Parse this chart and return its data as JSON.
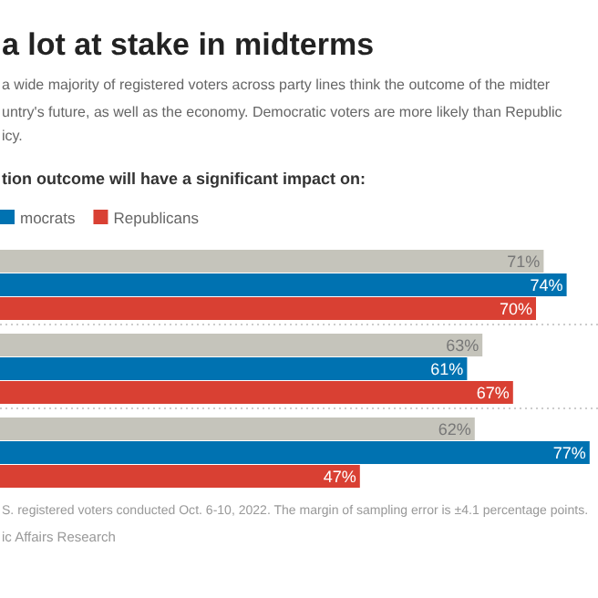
{
  "chart_data": {
    "type": "bar",
    "orientation": "horizontal",
    "title": "a lot at stake in midterms",
    "subtitle": "a wide majority of registered voters across party lines think the outcome of the midter\nuntry's future, as well as the economy. Democratic voters are more likely than Republic\nicy.\ntion outcome will have a significant impact on:",
    "categories": [
      null,
      null,
      null
    ],
    "series": [
      {
        "color": "#c5c4bb",
        "values": [
          71,
          63,
          62
        ],
        "value_labels": [
          "71%",
          "63%",
          "62%"
        ]
      },
      {
        "name": "mocrats",
        "color": "#0072b1",
        "values": [
          74,
          61,
          77
        ],
        "value_labels": [
          "74%",
          "61%",
          "77%"
        ]
      },
      {
        "name": "Republicans",
        "color": "#d94033",
        "values": [
          70,
          67,
          47
        ],
        "value_labels": [
          "70%",
          "67%",
          "47%"
        ]
      }
    ],
    "xlim": [
      0,
      78
    ],
    "tick_labels": false,
    "legend": "top left",
    "annotations": [
      "S. registered voters conducted Oct. 6-10, 2022. The margin of sampling error is ±4.1 percentage points.",
      "ic Affairs Research"
    ]
  }
}
